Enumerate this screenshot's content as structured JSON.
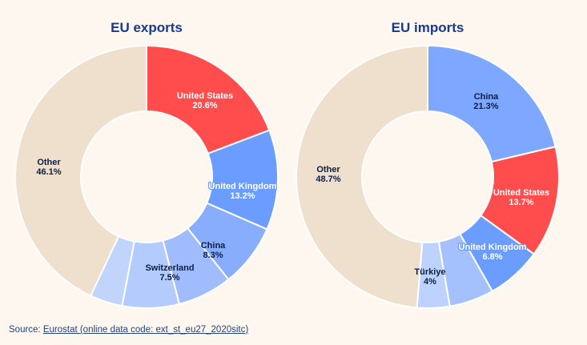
{
  "source": {
    "prefix": "Source: ",
    "link_text": "Eurostat (online data code: ext_st_eu27_2020sitc)"
  },
  "chart_data": [
    {
      "type": "pie",
      "title": "EU exports",
      "categories": [
        "United States",
        "United Kingdom",
        "China",
        "",
        "Switzerland",
        "",
        "Other"
      ],
      "values": [
        20.6,
        13.2,
        8.3,
        7.2,
        7.5,
        4.3,
        46.1
      ],
      "labels": [
        "United States\n20.6%",
        "United Kingdom\n13.2%",
        "China\n8.3%",
        "",
        "Switzerland\n7.5%",
        "",
        "Other\n46.1%"
      ],
      "colors": [
        "#ff4d4d",
        "#6a9dff",
        "#88adfd",
        "#a0bcfd",
        "#b3cbfd",
        "#c1d5fc",
        "#efdfcd"
      ],
      "label_colors": [
        "#ffffff",
        "#ffffff",
        "#0b1f45",
        "",
        "#0b1f45",
        "",
        "#0b1f45"
      ],
      "donut": true
    },
    {
      "type": "pie",
      "title": "EU imports",
      "categories": [
        "China",
        "United States",
        "United Kingdom",
        "",
        "Türkiye",
        "Other"
      ],
      "values": [
        21.3,
        13.7,
        6.8,
        5.5,
        4.0,
        48.7
      ],
      "labels": [
        "China\n21.3%",
        "United States\n13.7%",
        "United Kingdom\n6.8%",
        "",
        "Türkiye\n4%",
        "Other\n48.7%"
      ],
      "colors": [
        "#7ea7ff",
        "#ff4d4d",
        "#6a9dff",
        "#a5c1fd",
        "#bdd2fd",
        "#efdfcd"
      ],
      "label_colors": [
        "#0b1f45",
        "#ffffff",
        "#ffffff",
        "",
        "#0b1f45",
        "#0b1f45"
      ],
      "donut": true
    }
  ]
}
